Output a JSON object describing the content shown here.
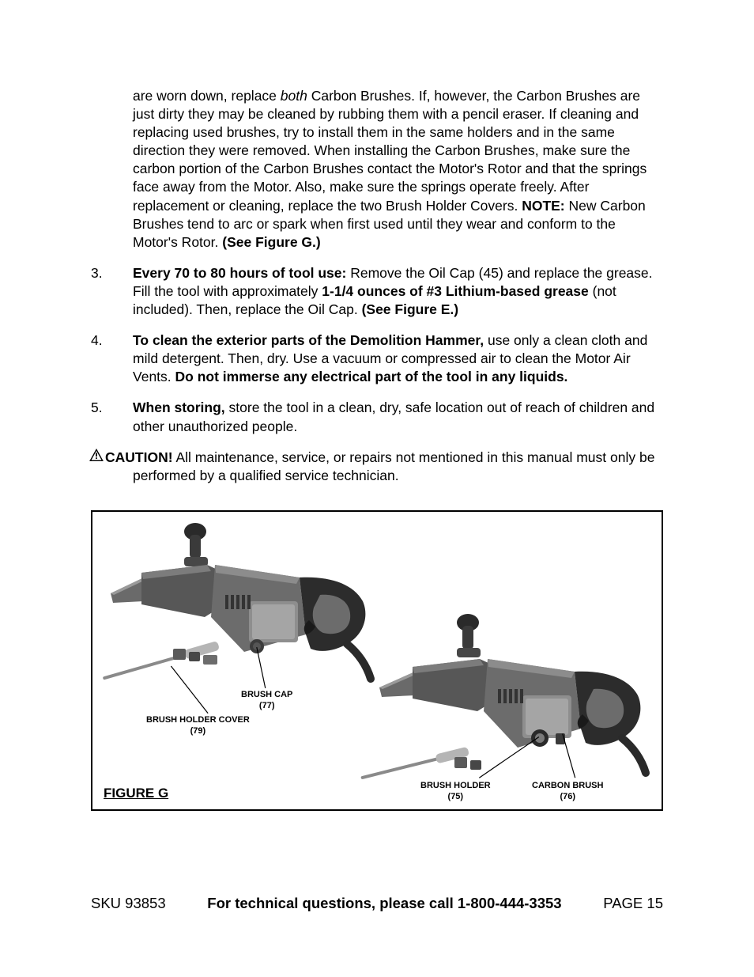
{
  "para1": {
    "runs": [
      {
        "t": "are worn down, replace "
      },
      {
        "t": "both",
        "cls": "italic"
      },
      {
        "t": " Carbon Brushes.  If, however, the Carbon Brushes are just dirty they may be cleaned by rubbing them with a pencil eraser.  If cleaning and replacing used brushes, try to install them in the same holders and in the same direction they were removed.  When installing the Carbon Brushes, make sure the carbon portion of the Carbon Brushes contact the Motor's Rotor and that the springs face away from the Motor.  Also, make sure the springs operate freely.  After replacement or cleaning, replace the two Brush Holder Covers.    "
      },
      {
        "t": "NOTE:",
        "cls": "bold"
      },
      {
        "t": "  New Carbon Brushes tend to arc or spark when first used until they wear and conform to the Motor's Rotor.  "
      },
      {
        "t": "(See Figure G.)",
        "cls": "bold"
      }
    ]
  },
  "para3": {
    "num": "3.",
    "runs": [
      {
        "t": "Every 70 to 80 hours of tool use:",
        "cls": "bold"
      },
      {
        "t": "  Remove the Oil Cap (45) and replace the grease.  Fill the tool with approximately "
      },
      {
        "t": "1-1/4 ounces of #3 Lithium-based grease",
        "cls": "bold"
      },
      {
        "t": " (not included).  Then, replace the Oil Cap.  "
      },
      {
        "t": "(See Figure E.)",
        "cls": "bold"
      }
    ]
  },
  "para4": {
    "num": "4.",
    "runs": [
      {
        "t": "To clean the exterior parts of the Demolition Hammer,",
        "cls": "bold"
      },
      {
        "t": " use only a clean cloth and mild detergent.  Then, dry.  Use a vacuum or compressed air to clean the Motor Air Vents.  "
      },
      {
        "t": "Do not immerse any electrical part of the tool in any liquids.",
        "cls": "bold"
      }
    ]
  },
  "para5": {
    "num": "5.",
    "runs": [
      {
        "t": "When storing,",
        "cls": "bold"
      },
      {
        "t": " store the tool in a clean, dry, safe location out of reach of children and other unauthorized people."
      }
    ]
  },
  "caution": {
    "lead": "CAUTION!",
    "rest": "  All maintenance, service, or repairs not mentioned in this manual must only be performed by a qualified service technician."
  },
  "figure": {
    "title": "FIGURE G",
    "labels": {
      "brush_cap": {
        "line1": "BRUSH CAP",
        "line2": "(77)"
      },
      "holder_cover": {
        "line1": "BRUSH HOLDER COVER",
        "line2": "(79)"
      },
      "brush_holder": {
        "line1": "BRUSH HOLDER",
        "line2": "(75)"
      },
      "carbon_brush": {
        "line1": "CARBON BRUSH",
        "line2": "(76)"
      }
    }
  },
  "footer": {
    "left": "SKU 93853",
    "center": "For technical questions, please call 1-800-444-3353",
    "right": "PAGE 15"
  }
}
